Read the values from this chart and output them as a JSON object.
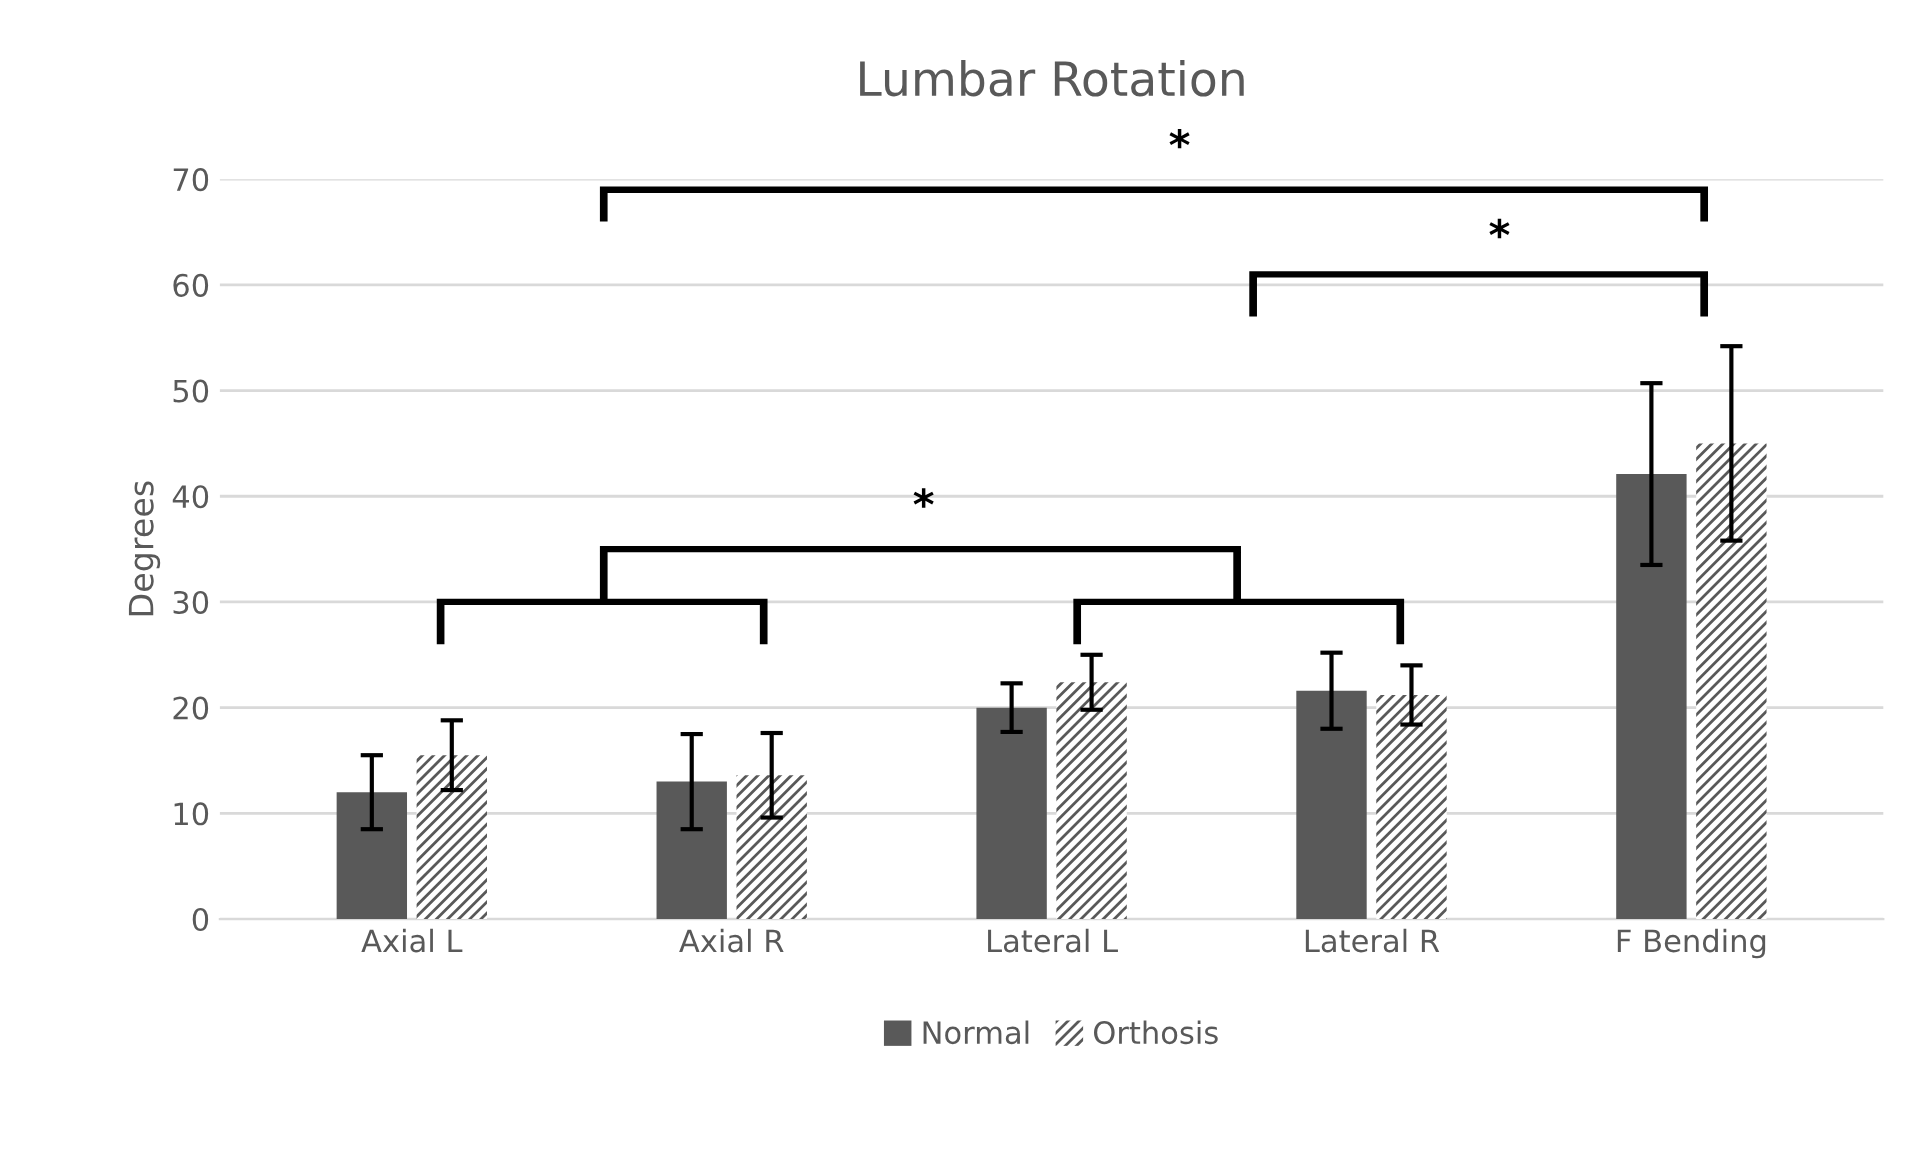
{
  "chart_data": {
    "type": "bar",
    "title": "Lumbar Rotation",
    "ylabel": "Degrees",
    "categories": [
      "Axial L",
      "Axial R",
      "Lateral L",
      "Lateral R",
      "F Bending"
    ],
    "series": [
      {
        "name": "Normal",
        "color": "#595959",
        "values": [
          12,
          13,
          20,
          21.6,
          42.1
        ],
        "errors": [
          3.5,
          4.5,
          2.3,
          3.6,
          8.6
        ]
      },
      {
        "name": "Orthosis",
        "color": "#595959",
        "values": [
          15.5,
          13.6,
          22.4,
          21.2,
          45
        ],
        "errors": [
          3.3,
          4,
          2.6,
          2.8,
          9.2
        ]
      }
    ],
    "ylim": [
      0,
      70
    ],
    "yticks": [
      0,
      10,
      20,
      30,
      40,
      50,
      60,
      70
    ],
    "grid": "y",
    "legend": "bottom",
    "annotations": [
      "*",
      "*",
      "*"
    ]
  }
}
